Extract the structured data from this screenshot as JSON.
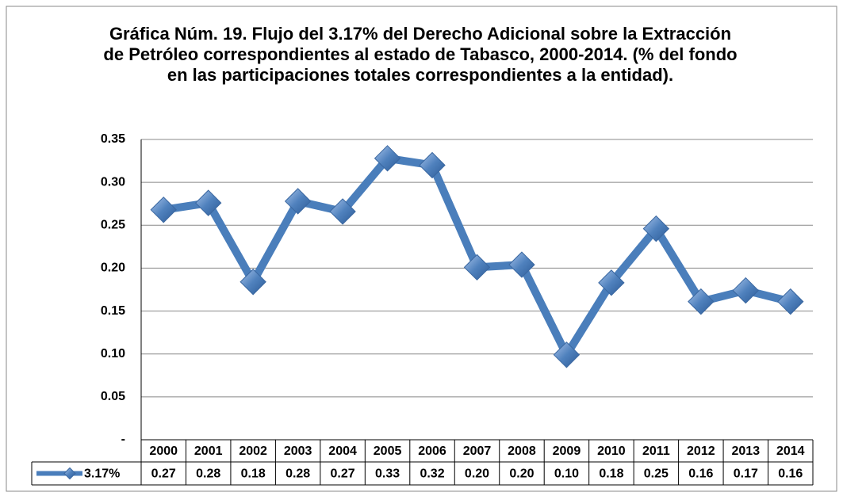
{
  "chart_data": {
    "type": "line",
    "title": "Gráfica Núm. 19. Flujo del 3.17% del Derecho Adicional sobre la Extracción de Petróleo correspondientes al estado de Tabasco, 2000-2014. (% del fondo en las participaciones totales correspondientes a la entidad).",
    "categories": [
      "2000",
      "2001",
      "2002",
      "2003",
      "2004",
      "2005",
      "2006",
      "2007",
      "2008",
      "2009",
      "2010",
      "2011",
      "2012",
      "2013",
      "2014"
    ],
    "series": [
      {
        "name": "3.17%",
        "color": "#4a7ebb",
        "values": [
          0.268,
          0.276,
          0.184,
          0.278,
          0.266,
          0.328,
          0.32,
          0.201,
          0.204,
          0.099,
          0.183,
          0.246,
          0.161,
          0.174,
          0.161
        ],
        "value_labels": [
          "0.27",
          "0.28",
          "0.18",
          "0.28",
          "0.27",
          "0.33",
          "0.32",
          "0.20",
          "0.20",
          "0.10",
          "0.18",
          "0.25",
          "0.16",
          "0.17",
          "0.16"
        ]
      }
    ],
    "ylim": [
      0,
      0.35
    ],
    "yticks": [
      {
        "value": 0,
        "label": "-"
      },
      0.05,
      {
        "value": 0.1,
        "label": "0.10"
      },
      0.15,
      {
        "value": 0.2,
        "label": "0.20"
      },
      0.25,
      {
        "value": 0.3,
        "label": "0.30"
      },
      0.35
    ],
    "grid": true
  }
}
